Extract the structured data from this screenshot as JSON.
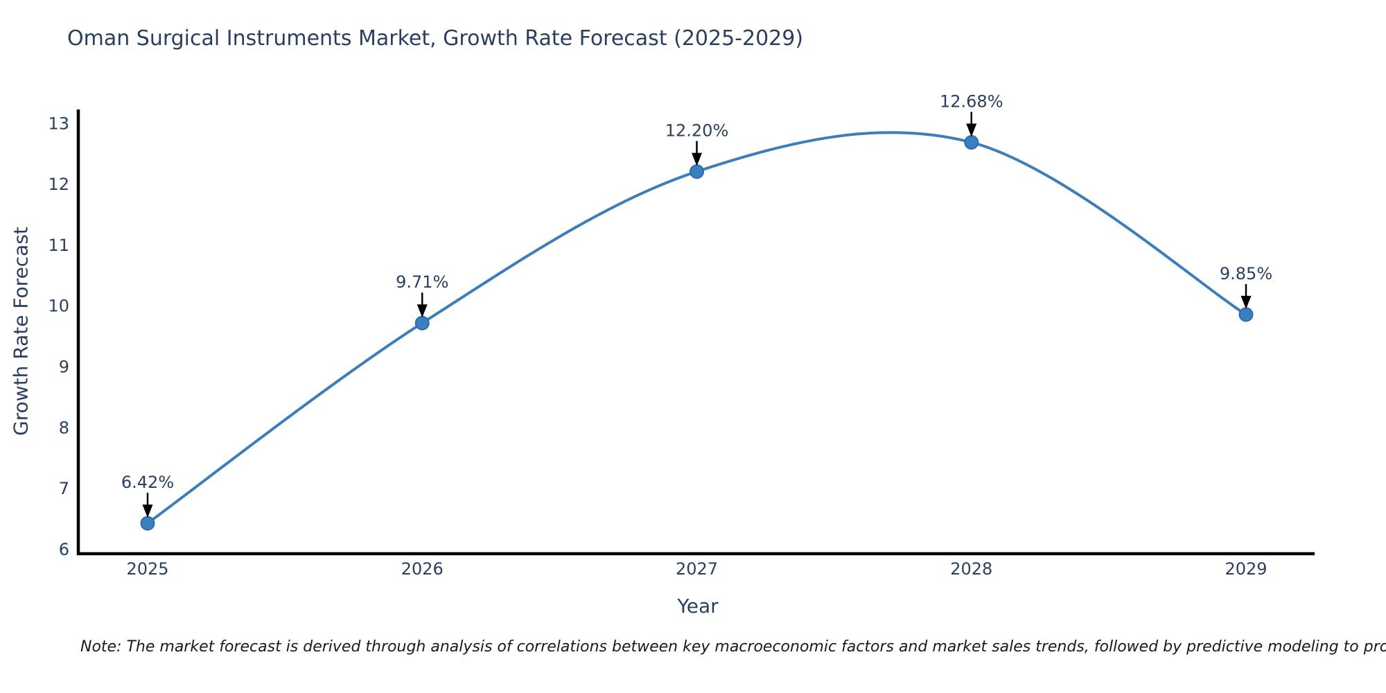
{
  "note": "Note: The market forecast is derived through analysis of correlations between key macroeconomic factors and market sales trends, followed by predictive modeling to project future sales.",
  "chart_data": {
    "type": "line",
    "title": "Oman Surgical Instruments Market, Growth Rate Forecast (2025-2029)",
    "xlabel": "Year",
    "ylabel": "Growth Rate Forecast",
    "categories": [
      "2025",
      "2026",
      "2027",
      "2028",
      "2029"
    ],
    "values": [
      6.42,
      9.71,
      12.2,
      12.68,
      9.85
    ],
    "point_labels": [
      "6.42%",
      "9.71%",
      "12.20%",
      "12.68%",
      "9.85%"
    ],
    "y_ticks": [
      "6",
      "7",
      "8",
      "9",
      "10",
      "11",
      "12",
      "13"
    ],
    "y_tick_values": [
      6,
      7,
      8,
      9,
      10,
      11,
      12,
      13
    ],
    "ylim": [
      5.92,
      13.22
    ],
    "line_shape": "spline",
    "grid": false,
    "legend": "none",
    "colors": {
      "line": "#3d7eba",
      "marker_fill": "#3a80c1",
      "marker_edge": "#2e6da8",
      "chart_text": "#2a3f5f",
      "axis": "#000000",
      "annotation_arrow": "#000000",
      "note_text": "#1a1a1a"
    }
  }
}
